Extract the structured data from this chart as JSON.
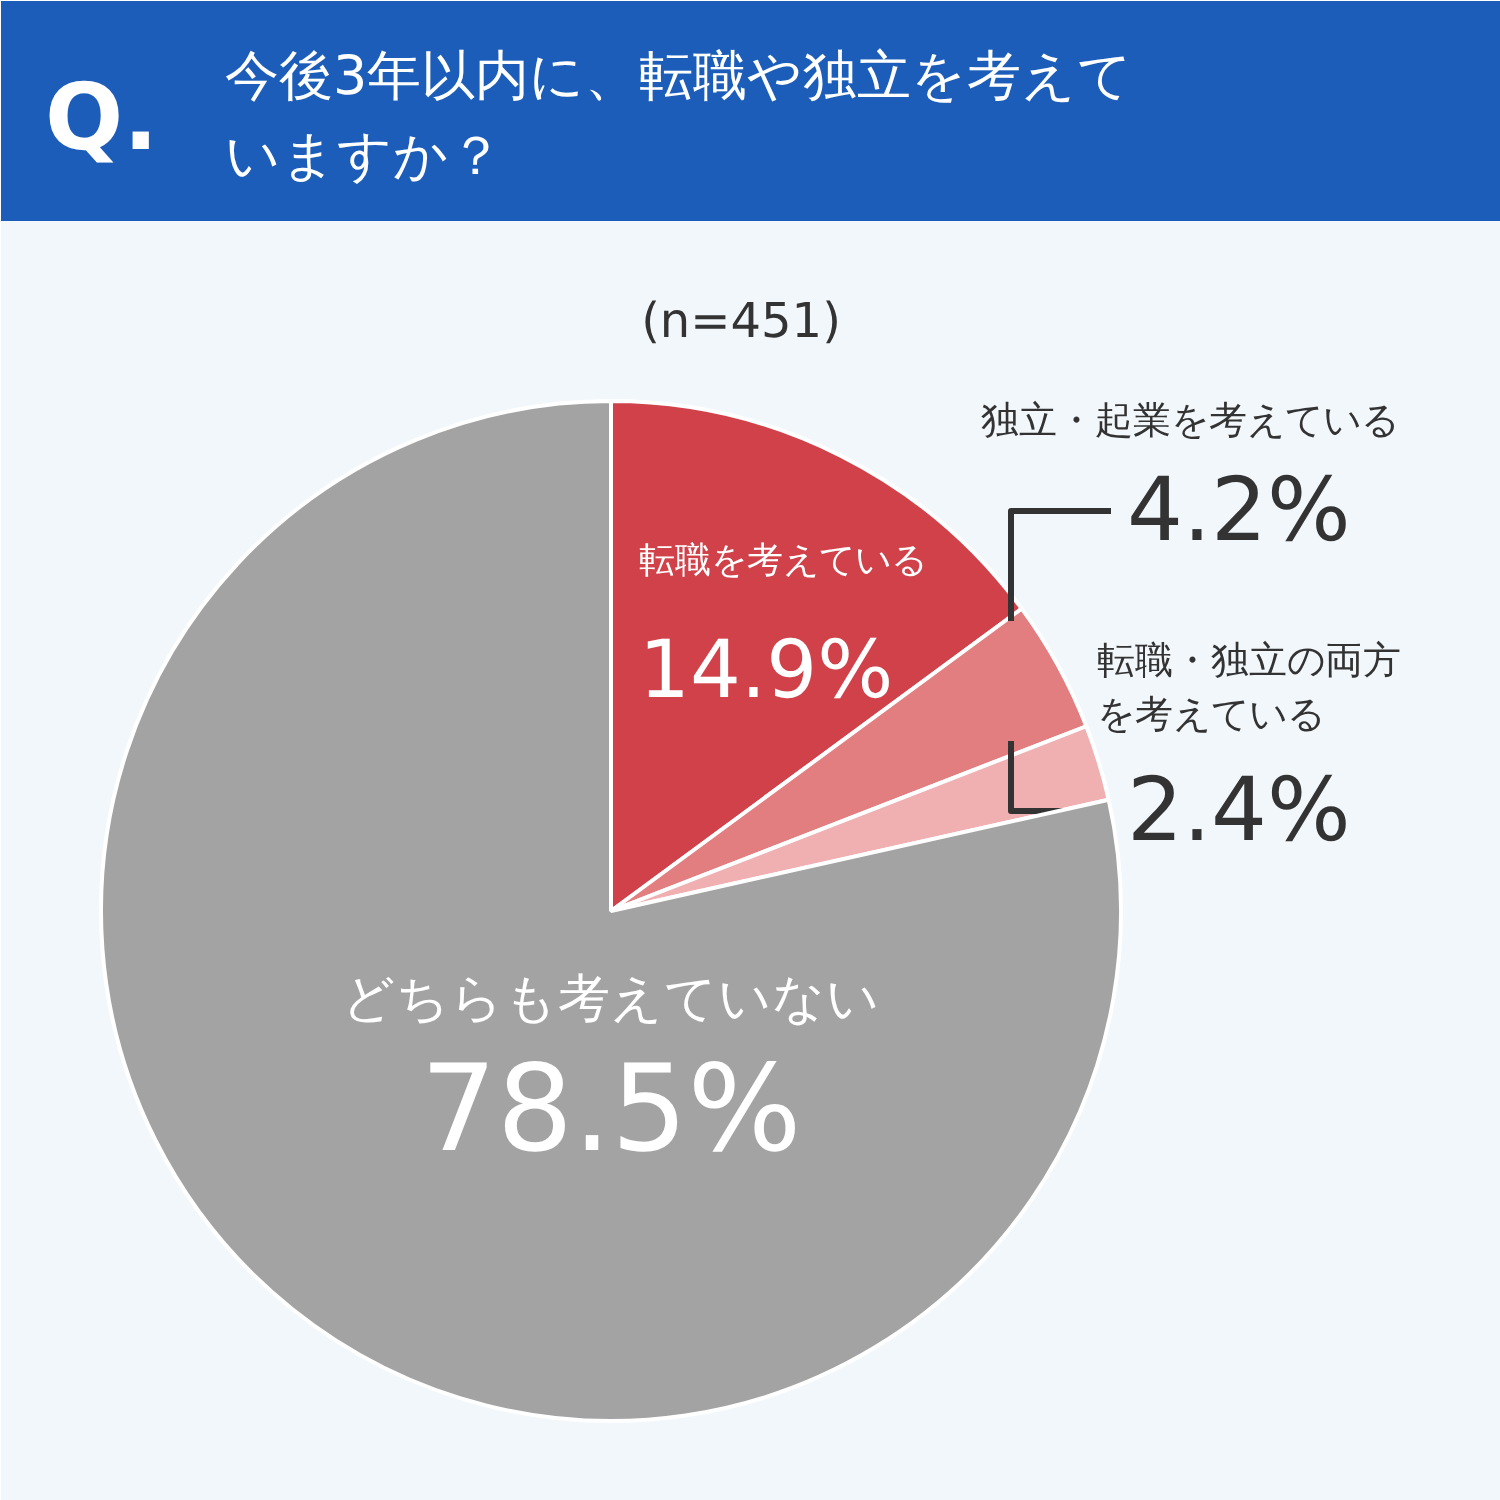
{
  "chart_data": {
    "type": "pie",
    "title": "今後3年以内に、転職や独立を考えていますか？",
    "subtitle": "(n=451)",
    "annotations": [
      "Q."
    ],
    "categories": [
      "転職を考えている",
      "独立・起業を考えている",
      "転職・独立の両方を考えている",
      "どちらも考えていない"
    ],
    "values": [
      14.9,
      4.2,
      2.4,
      78.5
    ],
    "value_labels": [
      "14.9%",
      "4.2%",
      "2.4%",
      "78.5%"
    ],
    "colors": [
      "#d0414a",
      "#e27d80",
      "#f0afb1",
      "#a3a3a3"
    ]
  }
}
